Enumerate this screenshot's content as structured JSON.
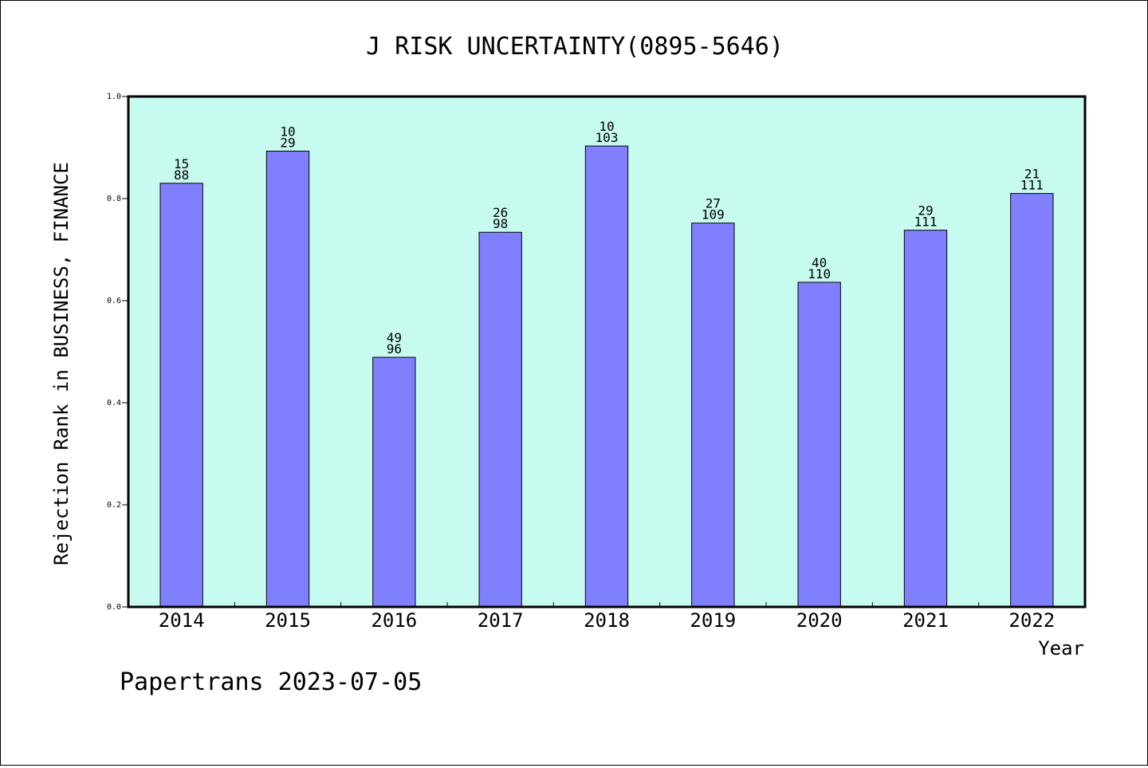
{
  "colors": {
    "plot_background": "#c8fbef",
    "bar_fill": "#8080ff",
    "bar_stroke": "#000000",
    "axis": "#000000"
  },
  "chart_data": {
    "type": "bar",
    "title": "J RISK UNCERTAINTY(0895-5646)",
    "xlabel": "Year",
    "ylabel": "Rejection Rank in BUSINESS, FINANCE",
    "ylim": [
      0,
      1.0
    ],
    "yticks": [
      "0.0",
      "0.2",
      "0.4",
      "0.6",
      "0.8",
      "1.0"
    ],
    "grid": false,
    "categories": [
      "2014",
      "2015",
      "2016",
      "2017",
      "2018",
      "2019",
      "2020",
      "2021",
      "2022"
    ],
    "values": [
      0.83,
      0.893,
      0.489,
      0.734,
      0.903,
      0.752,
      0.636,
      0.738,
      0.81
    ],
    "labels_top": [
      "15",
      "10",
      "49",
      "26",
      "10",
      "27",
      "40",
      "29",
      "21"
    ],
    "labels_bottom": [
      "88",
      "29",
      "96",
      "98",
      "103",
      "109",
      "110",
      "111",
      "111"
    ]
  },
  "footer": {
    "text": "Papertrans 2023-07-05"
  }
}
